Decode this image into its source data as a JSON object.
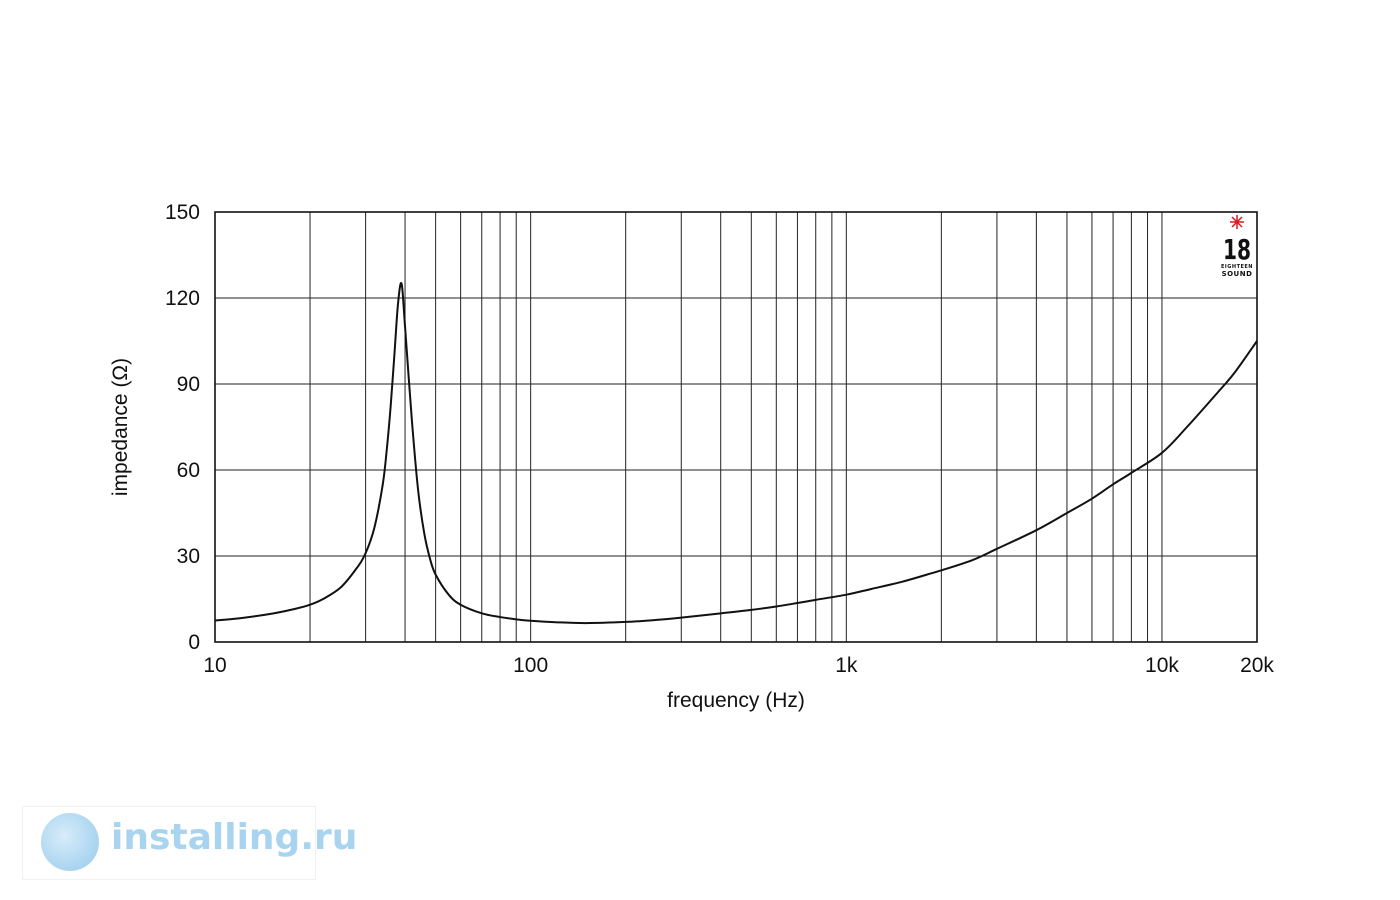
{
  "chart_data": {
    "type": "line",
    "title": "",
    "xlabel": "frequency (Hz)",
    "ylabel": "impedance (Ω)",
    "xscale": "log",
    "xlim": [
      10,
      20000
    ],
    "ylim": [
      0,
      150
    ],
    "grid": true,
    "yticks": [
      0,
      30,
      60,
      90,
      120,
      150
    ],
    "ytick_labels": [
      "0",
      "30",
      "60",
      "90",
      "120",
      "150"
    ],
    "xticks": [
      10,
      100,
      1000,
      10000,
      20000
    ],
    "xtick_labels": [
      "10",
      "100",
      "1k",
      "10k",
      "20k"
    ],
    "series": [
      {
        "x": [
          10,
          12,
          15,
          18,
          20,
          22,
          25,
          28,
          30,
          32,
          34,
          35,
          36,
          37,
          38,
          39,
          40,
          42,
          44,
          46,
          48,
          50,
          55,
          60,
          70,
          80,
          90,
          100,
          120,
          150,
          200,
          250,
          300,
          400,
          500,
          600,
          700,
          800,
          1000,
          1200,
          1500,
          1800,
          2000,
          2500,
          3000,
          4000,
          5000,
          6000,
          7000,
          8000,
          10000,
          12000,
          15000,
          17000,
          20000
        ],
        "y": [
          7.5,
          8.3,
          9.8,
          11.6,
          13,
          15,
          19,
          25.5,
          31,
          40,
          55,
          67,
          82,
          100,
          118,
          125,
          110,
          78,
          53,
          38,
          29,
          23.5,
          16.5,
          13,
          10,
          8.7,
          7.9,
          7.4,
          6.9,
          6.6,
          7,
          7.7,
          8.5,
          10,
          11.2,
          12.4,
          13.6,
          14.7,
          16.5,
          18.5,
          21,
          23.5,
          25,
          28.5,
          32.5,
          39,
          45,
          50,
          55,
          59,
          66,
          75,
          87,
          94,
          105
        ]
      }
    ]
  },
  "brand_logo": {
    "number": "18",
    "line1": "EIGHTEEN",
    "line2": "SOUND",
    "star_color": "#d71920"
  },
  "watermark": {
    "text": "installing.ru",
    "color": "#a9d4f0"
  }
}
